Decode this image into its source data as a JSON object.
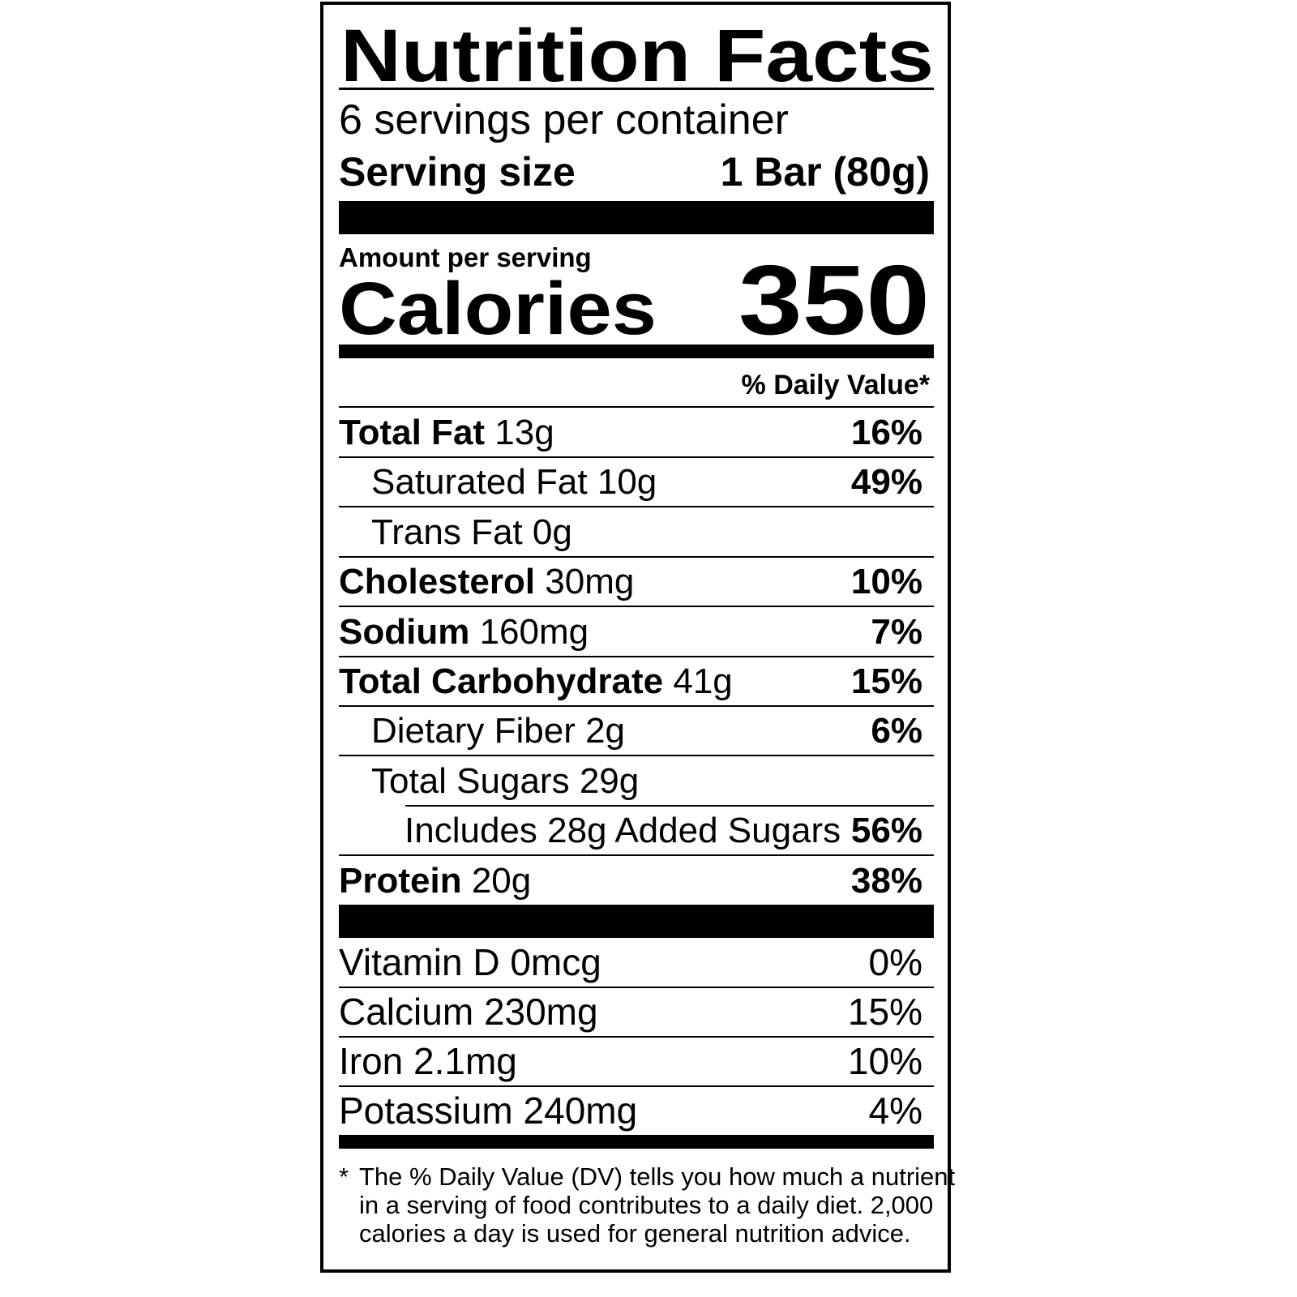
{
  "title": "Nutrition Facts",
  "servings_per_container": "6 servings per container",
  "serving_size_label": "Serving size",
  "serving_size_value": "1 Bar (80g)",
  "amount_per_serving": "Amount per serving",
  "calories_label": "Calories",
  "calories_value": "350",
  "daily_value_header": "% Daily Value*",
  "nutrients": [
    {
      "name": "Total Fat",
      "amount": "13g",
      "dv": "16%",
      "bold": true,
      "indent": 0
    },
    {
      "name": "Saturated Fat",
      "amount": "10g",
      "dv": "49%",
      "bold": false,
      "indent": 1
    },
    {
      "name": "Trans Fat",
      "amount": "0g",
      "dv": "",
      "bold": false,
      "indent": 1
    },
    {
      "name": "Cholesterol",
      "amount": "30mg",
      "dv": "10%",
      "bold": true,
      "indent": 0
    },
    {
      "name": "Sodium",
      "amount": "160mg",
      "dv": "7%",
      "bold": true,
      "indent": 0
    },
    {
      "name": "Total Carbohydrate",
      "amount": "41g",
      "dv": "15%",
      "bold": true,
      "indent": 0
    },
    {
      "name": "Dietary Fiber",
      "amount": "2g",
      "dv": "6%",
      "bold": false,
      "indent": 1
    },
    {
      "name": "Total Sugars",
      "amount": "29g",
      "dv": "",
      "bold": false,
      "indent": 1
    },
    {
      "name": "Includes 28g Added Sugars",
      "amount": "",
      "dv": "56%",
      "bold": false,
      "indent": 2
    },
    {
      "name": "Protein",
      "amount": "20g",
      "dv": "38%",
      "bold": true,
      "indent": 0
    }
  ],
  "vitamins": [
    {
      "name": "Vitamin D",
      "amount": "0mcg",
      "dv": "0%"
    },
    {
      "name": "Calcium",
      "amount": "230mg",
      "dv": "15%"
    },
    {
      "name": "Iron",
      "amount": "2.1mg",
      "dv": "10%"
    },
    {
      "name": "Potassium",
      "amount": "240mg",
      "dv": "4%"
    }
  ],
  "footnote_marker": "*",
  "footnote_lines": [
    "The % Daily Value (DV) tells you how much a nutrient",
    "in a serving of food contributes to a daily diet. 2,000",
    "calories a day is used for general nutrition advice."
  ]
}
